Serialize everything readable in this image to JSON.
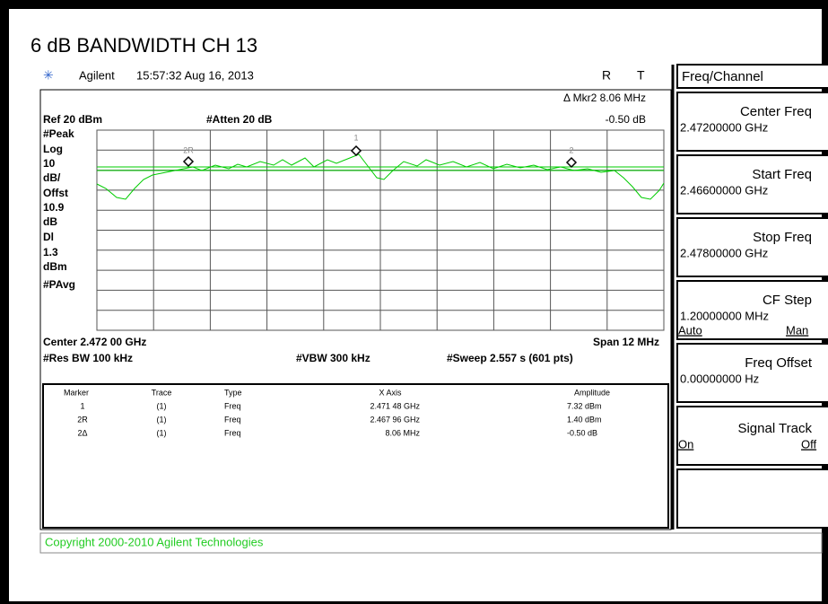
{
  "header": {
    "title": "6 dB BANDWIDTH CH 13",
    "instrument": "Agilent",
    "datetime": "15:57:32  Aug 16, 2013",
    "flag_r": "R",
    "flag_t": "T"
  },
  "readouts": {
    "ref": "Ref 20 dBm",
    "atten": "#Atten 20 dB",
    "marker_delta": "Δ Mkr2  8.06 MHz",
    "marker_amp": "-0.50 dB",
    "center": "Center 2.472 00 GHz",
    "span": "Span 12 MHz",
    "rbw": "#Res BW 100 kHz",
    "vbw": "#VBW 300 kHz",
    "sweep": "#Sweep 2.557 s (601 pts)"
  },
  "left_labels": [
    "#Peak",
    "Log",
    "10",
    "dB/",
    "Offst",
    "10.9",
    "dB",
    "Dl",
    "1.3",
    "dBm",
    "#PAvg"
  ],
  "marker_tags": [
    "2R",
    "1",
    "2"
  ],
  "table": {
    "header": [
      "Marker",
      "Trace",
      "Type",
      "X Axis",
      "Amplitude"
    ],
    "rows": [
      [
        "1",
        "(1)",
        "Freq",
        "2.471 48 GHz",
        "7.32 dBm"
      ],
      [
        "2R",
        "(1)",
        "Freq",
        "2.467 96 GHz",
        "1.40 dBm"
      ],
      [
        "2Δ",
        "(1)",
        "Freq",
        "8.06 MHz",
        "-0.50 dB"
      ]
    ]
  },
  "copyright": "Copyright 2000-2010 Agilent Technologies",
  "menu_title": "Freq/Channel",
  "softkeys": [
    {
      "label": "Center Freq",
      "value": "2.47200000 GHz"
    },
    {
      "label": "Start Freq",
      "value": "2.46600000 GHz"
    },
    {
      "label": "Stop Freq",
      "value": "2.47800000 GHz"
    },
    {
      "label": "CF Step",
      "value": "1.20000000 MHz",
      "left": "Auto",
      "right": "Man"
    },
    {
      "label": "Freq Offset",
      "value": "0.00000000  Hz"
    },
    {
      "label": "Signal Track",
      "left": "On",
      "right": "Off"
    }
  ]
}
